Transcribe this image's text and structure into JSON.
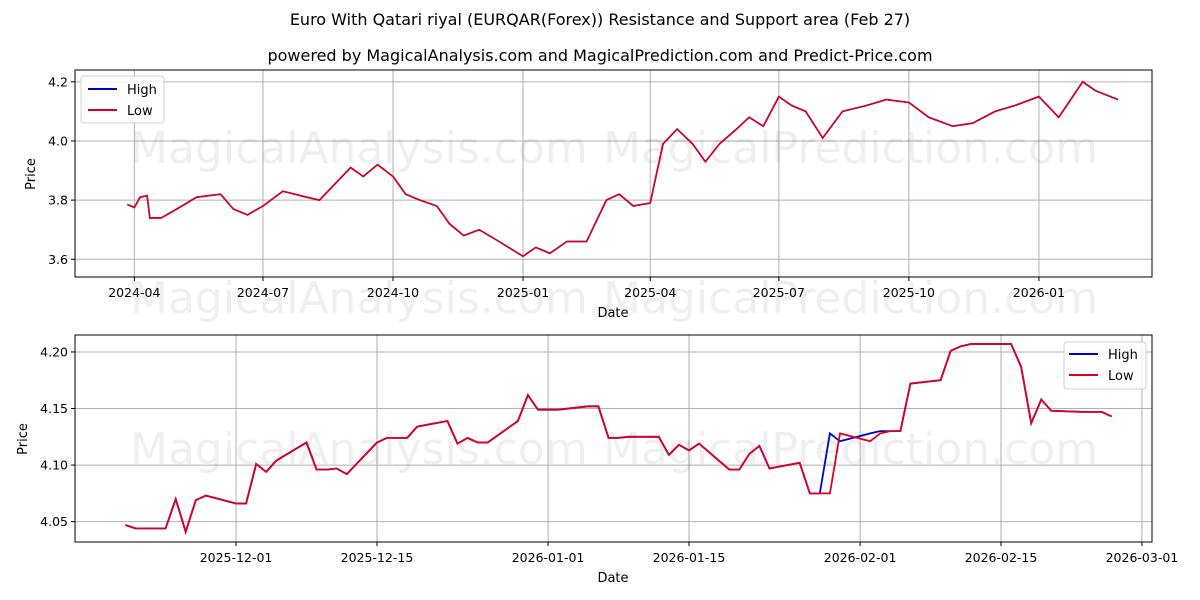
{
  "header": {
    "title": "Euro With Qatari riyal (EURQAR(Forex)) Resistance and Support area (Feb 27)",
    "subtitle": "powered by MagicalAnalysis.com and MagicalPrediction.com and Predict-Price.com"
  },
  "watermarks": [
    "MagicalAnalysis.com",
    "MagicalPrediction.com"
  ],
  "colors": {
    "high": "#0000cc",
    "low": "#dd0022",
    "grid": "#b0b0b0"
  },
  "chart_data": [
    {
      "type": "line",
      "title": "Long-term (2024-03 to 2026-02)",
      "xlabel": "Date",
      "ylabel": "Price",
      "ylim": [
        3.54,
        4.24
      ],
      "yticks": [
        "3.6",
        "3.8",
        "4.0",
        "4.2"
      ],
      "xticks": [
        "2024-04",
        "2024-07",
        "2024-10",
        "2025-01",
        "2025-04",
        "2025-07",
        "2025-10",
        "2026-01"
      ],
      "grid": true,
      "legend": {
        "position": "upper left",
        "entries": [
          "High",
          "Low"
        ]
      },
      "x": [
        "2024-03-27",
        "2024-04-01",
        "2024-04-05",
        "2024-04-10",
        "2024-04-12",
        "2024-04-20",
        "2024-05-01",
        "2024-05-15",
        "2024-06-01",
        "2024-06-10",
        "2024-06-20",
        "2024-07-01",
        "2024-07-15",
        "2024-08-01",
        "2024-08-10",
        "2024-08-20",
        "2024-09-01",
        "2024-09-10",
        "2024-09-20",
        "2024-10-01",
        "2024-10-10",
        "2024-10-20",
        "2024-11-01",
        "2024-11-10",
        "2024-11-20",
        "2024-12-01",
        "2024-12-15",
        "2025-01-01",
        "2025-01-10",
        "2025-01-20",
        "2025-02-01",
        "2025-02-15",
        "2025-03-01",
        "2025-03-10",
        "2025-03-20",
        "2025-04-01",
        "2025-04-10",
        "2025-04-20",
        "2025-05-01",
        "2025-05-10",
        "2025-05-20",
        "2025-06-01",
        "2025-06-10",
        "2025-06-20",
        "2025-07-01",
        "2025-07-10",
        "2025-07-20",
        "2025-08-01",
        "2025-08-15",
        "2025-09-01",
        "2025-09-15",
        "2025-10-01",
        "2025-10-15",
        "2025-11-01",
        "2025-11-15",
        "2025-12-01",
        "2025-12-15",
        "2026-01-01",
        "2026-01-15",
        "2026-02-01",
        "2026-02-10",
        "2026-02-26"
      ],
      "series": [
        {
          "name": "High",
          "values": [
            3.785,
            3.775,
            3.81,
            3.815,
            3.74,
            3.74,
            3.77,
            3.81,
            3.82,
            3.77,
            3.75,
            3.78,
            3.83,
            3.81,
            3.8,
            3.85,
            3.91,
            3.88,
            3.92,
            3.88,
            3.82,
            3.8,
            3.78,
            3.72,
            3.68,
            3.7,
            3.66,
            3.61,
            3.64,
            3.62,
            3.66,
            3.66,
            3.8,
            3.82,
            3.78,
            3.79,
            3.99,
            4.04,
            3.99,
            3.93,
            3.99,
            4.04,
            4.08,
            4.05,
            4.15,
            4.12,
            4.1,
            4.01,
            4.1,
            4.12,
            4.14,
            4.13,
            4.08,
            4.05,
            4.06,
            4.1,
            4.12,
            4.15,
            4.08,
            4.2,
            4.17,
            4.14
          ]
        },
        {
          "name": "Low",
          "values": [
            3.785,
            3.775,
            3.81,
            3.815,
            3.74,
            3.74,
            3.77,
            3.81,
            3.82,
            3.77,
            3.75,
            3.78,
            3.83,
            3.81,
            3.8,
            3.85,
            3.91,
            3.88,
            3.92,
            3.88,
            3.82,
            3.8,
            3.78,
            3.72,
            3.68,
            3.7,
            3.66,
            3.61,
            3.64,
            3.62,
            3.66,
            3.66,
            3.8,
            3.82,
            3.78,
            3.79,
            3.99,
            4.04,
            3.99,
            3.93,
            3.99,
            4.04,
            4.08,
            4.05,
            4.15,
            4.12,
            4.1,
            4.01,
            4.1,
            4.12,
            4.14,
            4.13,
            4.08,
            4.05,
            4.06,
            4.1,
            4.12,
            4.15,
            4.08,
            4.2,
            4.17,
            4.14
          ]
        }
      ]
    },
    {
      "type": "line",
      "title": "Short-term (2025-11-20 to 2026-02-26)",
      "xlabel": "Date",
      "ylabel": "Price",
      "ylim": [
        4.032,
        4.215
      ],
      "yticks": [
        "4.05",
        "4.10",
        "4.15",
        "4.20"
      ],
      "xticks": [
        "2025-12-01",
        "2025-12-15",
        "2026-01-01",
        "2026-01-15",
        "2026-02-01",
        "2026-02-15",
        "2026-03-01"
      ],
      "grid": true,
      "legend": {
        "position": "upper right",
        "entries": [
          "High",
          "Low"
        ]
      },
      "x": [
        "2025-11-20",
        "2025-11-21",
        "2025-11-24",
        "2025-11-25",
        "2025-11-26",
        "2025-11-27",
        "2025-11-28",
        "2025-12-01",
        "2025-12-02",
        "2025-12-03",
        "2025-12-04",
        "2025-12-05",
        "2025-12-08",
        "2025-12-09",
        "2025-12-10",
        "2025-12-11",
        "2025-12-12",
        "2025-12-15",
        "2025-12-16",
        "2025-12-17",
        "2025-12-18",
        "2025-12-19",
        "2025-12-22",
        "2025-12-23",
        "2025-12-24",
        "2025-12-25",
        "2025-12-26",
        "2025-12-29",
        "2025-12-30",
        "2025-12-31",
        "2026-01-01",
        "2026-01-02",
        "2026-01-05",
        "2026-01-06",
        "2026-01-07",
        "2026-01-08",
        "2026-01-09",
        "2026-01-12",
        "2026-01-13",
        "2026-01-14",
        "2026-01-15",
        "2026-01-16",
        "2026-01-19",
        "2026-01-20",
        "2026-01-21",
        "2026-01-22",
        "2026-01-23",
        "2026-01-26",
        "2026-01-27",
        "2026-01-28",
        "2026-01-29",
        "2026-01-30",
        "2026-02-02",
        "2026-02-03",
        "2026-02-04",
        "2026-02-05",
        "2026-02-06",
        "2026-02-09",
        "2026-02-10",
        "2026-02-11",
        "2026-02-12",
        "2026-02-13",
        "2026-02-16",
        "2026-02-17",
        "2026-02-18",
        "2026-02-19",
        "2026-02-20",
        "2026-02-23",
        "2026-02-24",
        "2026-02-25",
        "2026-02-26"
      ],
      "series": [
        {
          "name": "High",
          "values": [
            4.047,
            4.044,
            4.044,
            4.07,
            4.041,
            4.069,
            4.073,
            4.066,
            4.066,
            4.101,
            4.094,
            4.104,
            4.12,
            4.096,
            4.096,
            4.097,
            4.092,
            4.12,
            4.124,
            4.124,
            4.124,
            4.134,
            4.139,
            4.119,
            4.124,
            4.12,
            4.12,
            4.139,
            4.162,
            4.149,
            4.149,
            4.149,
            4.152,
            4.152,
            4.124,
            4.124,
            4.125,
            4.125,
            4.109,
            4.118,
            4.113,
            4.119,
            4.096,
            4.096,
            4.11,
            4.117,
            4.097,
            4.102,
            4.075,
            4.075,
            4.128,
            4.121,
            4.128,
            4.13,
            4.13,
            4.13,
            4.172,
            4.175,
            4.201,
            4.205,
            4.207,
            4.207,
            4.207,
            4.187,
            4.137,
            4.158,
            4.148,
            4.147,
            4.147,
            4.147,
            4.143
          ]
        },
        {
          "name": "Low",
          "values": [
            4.047,
            4.044,
            4.044,
            4.07,
            4.041,
            4.069,
            4.073,
            4.066,
            4.066,
            4.101,
            4.094,
            4.104,
            4.12,
            4.096,
            4.096,
            4.097,
            4.092,
            4.12,
            4.124,
            4.124,
            4.124,
            4.134,
            4.139,
            4.119,
            4.124,
            4.12,
            4.12,
            4.139,
            4.162,
            4.149,
            4.149,
            4.149,
            4.152,
            4.152,
            4.124,
            4.124,
            4.125,
            4.125,
            4.109,
            4.118,
            4.113,
            4.119,
            4.096,
            4.096,
            4.11,
            4.117,
            4.097,
            4.102,
            4.075,
            4.075,
            4.075,
            4.128,
            4.121,
            4.128,
            4.13,
            4.13,
            4.172,
            4.175,
            4.201,
            4.205,
            4.207,
            4.207,
            4.207,
            4.187,
            4.137,
            4.158,
            4.148,
            4.147,
            4.147,
            4.147,
            4.143
          ]
        }
      ]
    }
  ]
}
